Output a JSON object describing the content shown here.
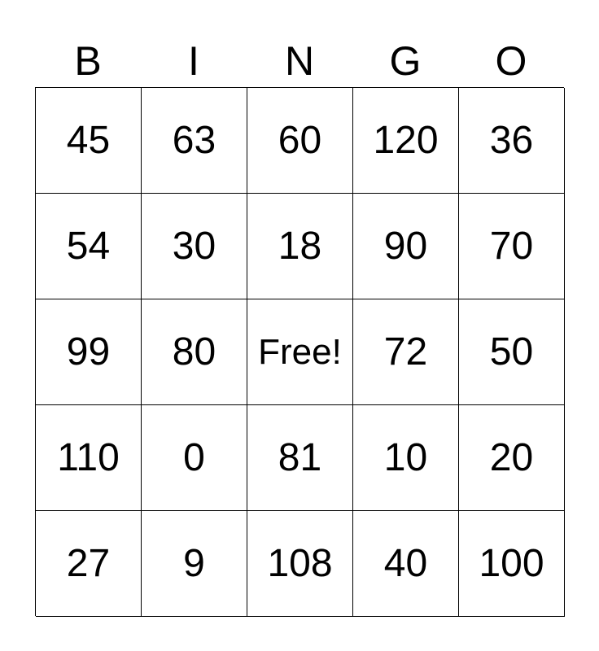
{
  "header": [
    "B",
    "I",
    "N",
    "G",
    "O"
  ],
  "rows": [
    [
      "45",
      "63",
      "60",
      "120",
      "36"
    ],
    [
      "54",
      "30",
      "18",
      "90",
      "70"
    ],
    [
      "99",
      "80",
      "Free!",
      "72",
      "50"
    ],
    [
      "110",
      "0",
      "81",
      "10",
      "20"
    ],
    [
      "27",
      "9",
      "108",
      "40",
      "100"
    ]
  ]
}
